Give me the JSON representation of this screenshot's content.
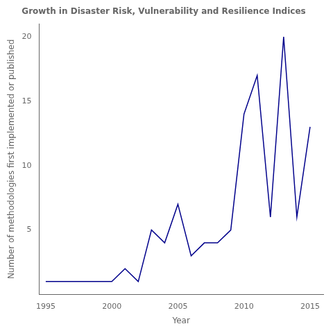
{
  "chart_data": {
    "type": "line",
    "title": "Growth in Disaster Risk, Vulnerability and Resilience Indices",
    "x_label": "Year",
    "y_label": "Number of methodologies first implemented or published",
    "x": [
      1995,
      1996,
      1997,
      1998,
      1999,
      2000,
      2001,
      2002,
      2003,
      2004,
      2005,
      2006,
      2007,
      2008,
      2009,
      2010,
      2011,
      2012,
      2013,
      2014,
      2015
    ],
    "values": [
      1,
      1,
      1,
      1,
      1,
      1,
      2,
      1,
      5,
      4,
      7,
      3,
      4,
      4,
      5,
      14,
      17,
      6,
      20,
      6,
      13
    ],
    "color": "#00008B",
    "xlim": [
      1994.5,
      2016
    ],
    "ylim": [
      0,
      21
    ],
    "xticks": [
      1995,
      2000,
      2005,
      2010,
      2015
    ],
    "yticks": [
      5,
      10,
      15,
      20
    ],
    "grid": false
  }
}
